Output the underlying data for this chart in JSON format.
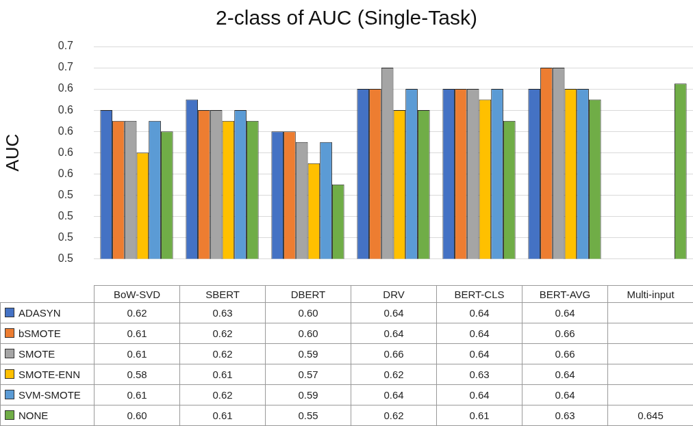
{
  "chart_data": {
    "type": "bar",
    "title": "2-class of AUC (Single-Task)",
    "ylabel": "AUC",
    "categories": [
      "BoW-SVD",
      "SBERT",
      "DBERT",
      "DRV",
      "BERT-CLS",
      "BERT-AVG",
      "Multi-input"
    ],
    "series": [
      {
        "name": "ADASYN",
        "color": "#4472c4",
        "values": [
          0.62,
          0.63,
          0.6,
          0.64,
          0.64,
          0.64,
          null
        ],
        "value_labels": [
          "0.62",
          "0.63",
          "0.60",
          "0.64",
          "0.64",
          "0.64",
          null
        ]
      },
      {
        "name": "bSMOTE",
        "color": "#ed7d31",
        "values": [
          0.61,
          0.62,
          0.6,
          0.64,
          0.64,
          0.66,
          null
        ],
        "value_labels": [
          "0.61",
          "0.62",
          "0.60",
          "0.64",
          "0.64",
          "0.66",
          null
        ]
      },
      {
        "name": "SMOTE",
        "color": "#a5a5a5",
        "values": [
          0.61,
          0.62,
          0.59,
          0.66,
          0.64,
          0.66,
          null
        ],
        "value_labels": [
          "0.61",
          "0.62",
          "0.59",
          "0.66",
          "0.64",
          "0.66",
          null
        ]
      },
      {
        "name": "SMOTE-ENN",
        "color": "#ffc000",
        "values": [
          0.58,
          0.61,
          0.57,
          0.62,
          0.63,
          0.64,
          null
        ],
        "value_labels": [
          "0.58",
          "0.61",
          "0.57",
          "0.62",
          "0.63",
          "0.64",
          null
        ]
      },
      {
        "name": "SVM-SMOTE",
        "color": "#5b9bd5",
        "values": [
          0.61,
          0.62,
          0.59,
          0.64,
          0.64,
          0.64,
          null
        ],
        "value_labels": [
          "0.61",
          "0.62",
          "0.59",
          "0.64",
          "0.64",
          "0.64",
          null
        ]
      },
      {
        "name": "NONE",
        "color": "#70ad47",
        "values": [
          0.6,
          0.61,
          0.55,
          0.62,
          0.61,
          0.63,
          0.645
        ],
        "value_labels": [
          "0.60",
          "0.61",
          "0.55",
          "0.62",
          "0.61",
          "0.63",
          "0.645"
        ]
      }
    ],
    "ylim": [
      0.48,
      0.68
    ],
    "yticks": [
      {
        "value": 0.48,
        "label": "0.5"
      },
      {
        "value": 0.5,
        "label": "0.5"
      },
      {
        "value": 0.52,
        "label": "0.5"
      },
      {
        "value": 0.54,
        "label": "0.5"
      },
      {
        "value": 0.56,
        "label": "0.6"
      },
      {
        "value": 0.58,
        "label": "0.6"
      },
      {
        "value": 0.6,
        "label": "0.6"
      },
      {
        "value": 0.62,
        "label": "0.6"
      },
      {
        "value": 0.64,
        "label": "0.6"
      },
      {
        "value": 0.66,
        "label": "0.7"
      },
      {
        "value": 0.68,
        "label": "0.7"
      }
    ],
    "grid": "y",
    "legend": "bottom"
  }
}
